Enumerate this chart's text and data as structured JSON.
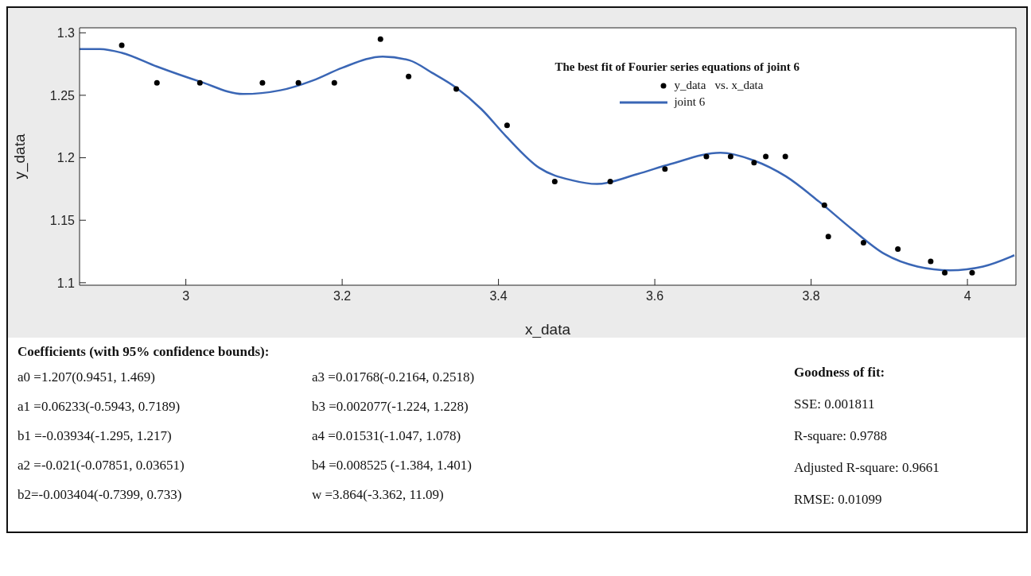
{
  "chart_data": {
    "type": "scatter",
    "xlabel": "x_data",
    "ylabel": "y_data",
    "legend_title": "The best fit of Fourier series equations of joint 6",
    "legend": "top right",
    "grid": false,
    "xlim": [
      2.864,
      4.062
    ],
    "xticks": [
      3,
      3.2,
      3.4,
      3.6,
      3.8,
      4
    ],
    "ylim": [
      1.098,
      1.304
    ],
    "yticks": [
      1.1,
      1.15,
      1.2,
      1.25,
      1.3
    ],
    "series": [
      {
        "name": "y_data   vs. x_data",
        "color": "#000000",
        "marker": "circle",
        "x": [
          2.918,
          2.963,
          3.018,
          3.098,
          3.144,
          3.19,
          3.249,
          3.285,
          3.346,
          3.411,
          3.472,
          3.543,
          3.613,
          3.666,
          3.697,
          3.727,
          3.742,
          3.767,
          3.817,
          3.822,
          3.867,
          3.911,
          3.953,
          3.971,
          4.006
        ],
        "values": [
          1.29,
          1.26,
          1.26,
          1.26,
          1.26,
          1.26,
          1.295,
          1.265,
          1.255,
          1.226,
          1.181,
          1.181,
          1.191,
          1.201,
          1.201,
          1.196,
          1.201,
          1.201,
          1.162,
          1.137,
          1.132,
          1.127,
          1.117,
          1.108,
          1.108
        ]
      },
      {
        "name": "joint 6",
        "type": "line",
        "color": "#3a66b5",
        "marker": "none",
        "line_style": "solid",
        "x": [
          2.864,
          2.89,
          2.918,
          2.963,
          3.018,
          3.073,
          3.121,
          3.163,
          3.2,
          3.252,
          3.286,
          3.315,
          3.346,
          3.378,
          3.41,
          3.452,
          3.494,
          3.526,
          3.578,
          3.62,
          3.684,
          3.726,
          3.768,
          3.81,
          3.852,
          3.894,
          3.936,
          3.978,
          4.02,
          4.06
        ],
        "values": [
          1.287,
          1.287,
          1.284,
          1.273,
          1.261,
          1.251,
          1.254,
          1.262,
          1.272,
          1.281,
          1.278,
          1.268,
          1.256,
          1.239,
          1.217,
          1.192,
          1.182,
          1.179,
          1.187,
          1.195,
          1.204,
          1.198,
          1.185,
          1.165,
          1.143,
          1.123,
          1.113,
          1.11,
          1.113,
          1.122
        ]
      }
    ],
    "annotations": [
      "Coefficients (with 95% confidence bounds):",
      "a0 =1.207(0.9451, 1.469)",
      "a1 =0.06233(-0.5943, 0.7189)",
      "b1 =-0.03934(-1.295, 1.217)",
      "a2 =-0.021(-0.07851, 0.03651)",
      "b2=-0.003404(-0.7399, 0.733)",
      "a3 =0.01768(-0.2164, 0.2518)",
      "b3 =0.002077(-1.224, 1.228)",
      "a4 =0.01531(-1.047, 1.078)",
      "b4 =0.008525 (-1.384, 1.401)",
      "w =3.864(-3.362, 11.09)",
      "Goodness of fit:",
      "SSE: 0.001811",
      "R-square: 0.9788",
      "Adjusted R-square: 0.9661",
      "RMSE: 0.01099"
    ]
  }
}
